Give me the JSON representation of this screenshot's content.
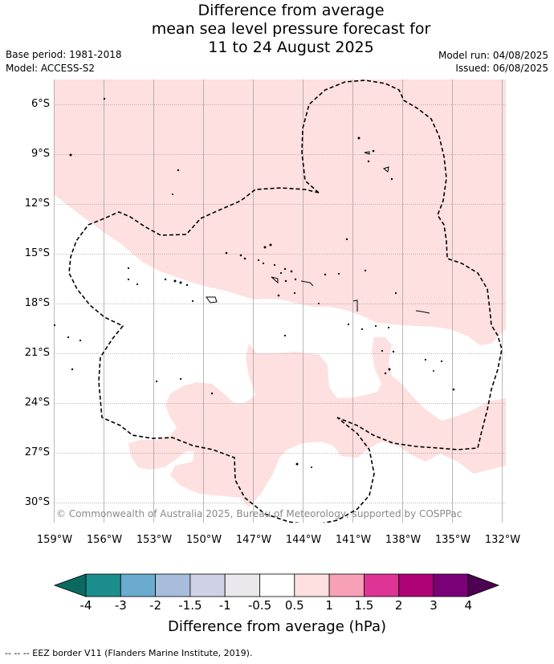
{
  "title": {
    "line1": "Difference from average",
    "line2": "mean sea level pressure forecast for",
    "line3": "11 to 24 August 2025"
  },
  "meta": {
    "base_period": "Base period: 1981-2018",
    "model": "Model: ACCESS-S2",
    "model_run": "Model run: 04/08/2025",
    "issued": "Issued: 06/08/2025"
  },
  "axes": {
    "lat_labels": [
      "6°S",
      "9°S",
      "12°S",
      "15°S",
      "18°S",
      "21°S",
      "24°S",
      "27°S",
      "30°S"
    ],
    "lon_labels": [
      "159°W",
      "156°W",
      "153°W",
      "150°W",
      "147°W",
      "144°W",
      "141°W",
      "138°W",
      "135°W",
      "132°W"
    ]
  },
  "copyright": "© Commonwealth of Australia 2025, Bureau of Meteorology, supported by COSPPac",
  "colorbar": {
    "ticks": [
      "-4",
      "-3",
      "-2",
      "-1.5",
      "-1",
      "-0.5",
      "0.5",
      "1",
      "1.5",
      "2",
      "3",
      "4"
    ],
    "colors": [
      "#1c8d8d",
      "#6aabcf",
      "#a8bcdc",
      "#cfd1e6",
      "#ebe8ec",
      "#ffffff",
      "#fde0df",
      "#f7a0b6",
      "#dd3496",
      "#ae0276",
      "#7a0177"
    ],
    "under_color": "#0a6a62",
    "over_color": "#4e0152",
    "label": "Difference from average (hPa)"
  },
  "footnote": "--  --  -- EEZ border V11 (Flanders Marine Institute, 2019).",
  "map_colors": {
    "positive_fill": "#fde0df",
    "background": "#ffffff"
  }
}
